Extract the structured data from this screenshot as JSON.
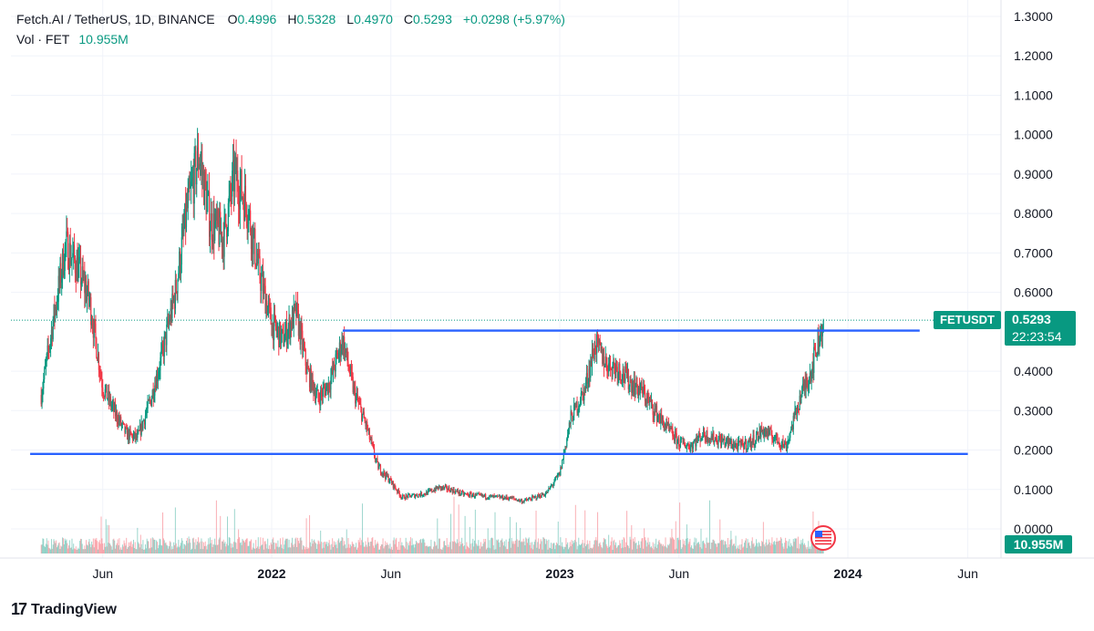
{
  "header": {
    "symbol": "Fetch.AI / TetherUS, 1D, BINANCE",
    "open_label": "O",
    "open": "0.4996",
    "high_label": "H",
    "high": "0.5328",
    "low_label": "L",
    "low": "0.4970",
    "close_label": "C",
    "close": "0.5293",
    "change": "+0.0298 (+5.97%)",
    "vol_label": "Vol · FET",
    "vol_value": "10.955M"
  },
  "price_tag": {
    "ticker": "FETUSDT",
    "price": "0.5293",
    "countdown": "22:23:54",
    "volume": "10.955M"
  },
  "brand": {
    "name": "TradingView"
  },
  "colors": {
    "up": "#089981",
    "down": "#f23645",
    "support_line": "#2962ff",
    "price_tag": "#089981",
    "grid": "#f0f3fa"
  },
  "chart_data": {
    "type": "candlestick",
    "y_ticks": [
      "1.3000",
      "1.2000",
      "1.1000",
      "1.0000",
      "0.9000",
      "0.8000",
      "0.7000",
      "0.6000",
      "0.4000",
      "0.3000",
      "0.2000",
      "0.1000",
      "0.0000"
    ],
    "x_ticks": [
      "Jun",
      "2022",
      "Jun",
      "2023",
      "Jun",
      "2024",
      "Jun"
    ],
    "ylim": [
      0,
      1.3
    ],
    "last_price": 0.5293,
    "horizontal_lines": [
      {
        "start": "2022-04",
        "end": "2024-04",
        "value": 0.503
      },
      {
        "start": "2021-03",
        "end": "2024-06",
        "value": 0.19
      }
    ],
    "series": [
      {
        "date": "2021-03-15",
        "close": 0.34
      },
      {
        "date": "2021-04-01",
        "close": 0.55
      },
      {
        "date": "2021-04-15",
        "close": 0.72
      },
      {
        "date": "2021-05-01",
        "close": 0.66
      },
      {
        "date": "2021-05-15",
        "close": 0.58
      },
      {
        "date": "2021-06-01",
        "close": 0.36
      },
      {
        "date": "2021-06-15",
        "close": 0.3
      },
      {
        "date": "2021-07-01",
        "close": 0.24
      },
      {
        "date": "2021-07-15",
        "close": 0.23
      },
      {
        "date": "2021-08-01",
        "close": 0.33
      },
      {
        "date": "2021-08-15",
        "close": 0.44
      },
      {
        "date": "2021-09-01",
        "close": 0.6
      },
      {
        "date": "2021-09-15",
        "close": 0.8
      },
      {
        "date": "2021-10-01",
        "close": 0.95
      },
      {
        "date": "2021-10-15",
        "close": 0.78
      },
      {
        "date": "2021-11-01",
        "close": 0.74
      },
      {
        "date": "2021-11-15",
        "close": 0.9
      },
      {
        "date": "2021-12-01",
        "close": 0.82
      },
      {
        "date": "2021-12-15",
        "close": 0.66
      },
      {
        "date": "2022-01-01",
        "close": 0.52
      },
      {
        "date": "2022-01-15",
        "close": 0.48
      },
      {
        "date": "2022-02-01",
        "close": 0.55
      },
      {
        "date": "2022-02-15",
        "close": 0.4
      },
      {
        "date": "2022-03-01",
        "close": 0.33
      },
      {
        "date": "2022-03-15",
        "close": 0.37
      },
      {
        "date": "2022-04-01",
        "close": 0.48
      },
      {
        "date": "2022-04-15",
        "close": 0.35
      },
      {
        "date": "2022-05-01",
        "close": 0.26
      },
      {
        "date": "2022-05-15",
        "close": 0.16
      },
      {
        "date": "2022-06-01",
        "close": 0.12
      },
      {
        "date": "2022-06-15",
        "close": 0.08
      },
      {
        "date": "2022-07-01",
        "close": 0.085
      },
      {
        "date": "2022-07-15",
        "close": 0.09
      },
      {
        "date": "2022-08-01",
        "close": 0.105
      },
      {
        "date": "2022-08-15",
        "close": 0.1
      },
      {
        "date": "2022-09-01",
        "close": 0.088
      },
      {
        "date": "2022-09-15",
        "close": 0.085
      },
      {
        "date": "2022-10-01",
        "close": 0.082
      },
      {
        "date": "2022-10-15",
        "close": 0.08
      },
      {
        "date": "2022-11-01",
        "close": 0.078
      },
      {
        "date": "2022-11-15",
        "close": 0.07
      },
      {
        "date": "2022-12-01",
        "close": 0.08
      },
      {
        "date": "2022-12-15",
        "close": 0.09
      },
      {
        "date": "2023-01-01",
        "close": 0.14
      },
      {
        "date": "2023-01-15",
        "close": 0.28
      },
      {
        "date": "2023-02-01",
        "close": 0.35
      },
      {
        "date": "2023-02-15",
        "close": 0.47
      },
      {
        "date": "2023-03-01",
        "close": 0.42
      },
      {
        "date": "2023-03-15",
        "close": 0.41
      },
      {
        "date": "2023-04-01",
        "close": 0.37
      },
      {
        "date": "2023-04-15",
        "close": 0.35
      },
      {
        "date": "2023-05-01",
        "close": 0.3
      },
      {
        "date": "2023-05-15",
        "close": 0.26
      },
      {
        "date": "2023-06-01",
        "close": 0.22
      },
      {
        "date": "2023-06-15",
        "close": 0.21
      },
      {
        "date": "2023-07-01",
        "close": 0.24
      },
      {
        "date": "2023-07-15",
        "close": 0.23
      },
      {
        "date": "2023-08-01",
        "close": 0.22
      },
      {
        "date": "2023-08-15",
        "close": 0.21
      },
      {
        "date": "2023-09-01",
        "close": 0.22
      },
      {
        "date": "2023-09-15",
        "close": 0.25
      },
      {
        "date": "2023-10-01",
        "close": 0.23
      },
      {
        "date": "2023-10-15",
        "close": 0.21
      },
      {
        "date": "2023-11-01",
        "close": 0.33
      },
      {
        "date": "2023-11-15",
        "close": 0.4
      },
      {
        "date": "2023-12-01",
        "close": 0.5293
      }
    ]
  }
}
